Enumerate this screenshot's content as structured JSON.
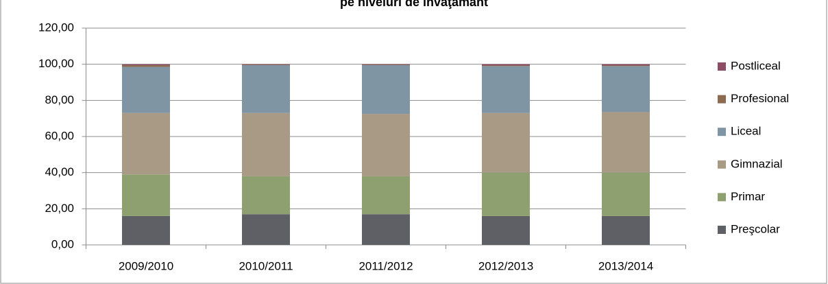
{
  "chart_data": {
    "type": "stacked_bar",
    "title": "pe niveluri de învăţământ",
    "categories": [
      "2009/2010",
      "2010/2011",
      "2011/2012",
      "2012/2013",
      "2013/2014"
    ],
    "series": [
      {
        "name": "Preşcolar",
        "color": "#5f5f66",
        "values": [
          16,
          17,
          17,
          16,
          16
        ]
      },
      {
        "name": "Primar",
        "color": "#8ea070",
        "values": [
          23,
          21,
          21,
          24,
          24
        ]
      },
      {
        "name": "Gimnazial",
        "color": "#a99a86",
        "values": [
          34,
          35,
          34.5,
          33,
          33.5
        ]
      },
      {
        "name": "Liceal",
        "color": "#8095a3",
        "values": [
          25.5,
          26.5,
          27,
          26,
          25.5
        ]
      },
      {
        "name": "Profesional",
        "color": "#8c6b50",
        "values": [
          1,
          0.2,
          0.2,
          0.3,
          0.3
        ]
      },
      {
        "name": "Postliceal",
        "color": "#8c4d64",
        "values": [
          0.5,
          0.3,
          0.3,
          0.7,
          0.7
        ]
      }
    ],
    "ylim": [
      0,
      120
    ],
    "yticks": [
      {
        "value": 0,
        "label": "0,00"
      },
      {
        "value": 20,
        "label": "20,00"
      },
      {
        "value": 40,
        "label": "40,00"
      },
      {
        "value": 60,
        "label": "60,00"
      },
      {
        "value": 80,
        "label": "80,00"
      },
      {
        "value": 100,
        "label": "100,00"
      },
      {
        "value": 120,
        "label": "120,00"
      }
    ],
    "grid": true,
    "legend": "right"
  }
}
